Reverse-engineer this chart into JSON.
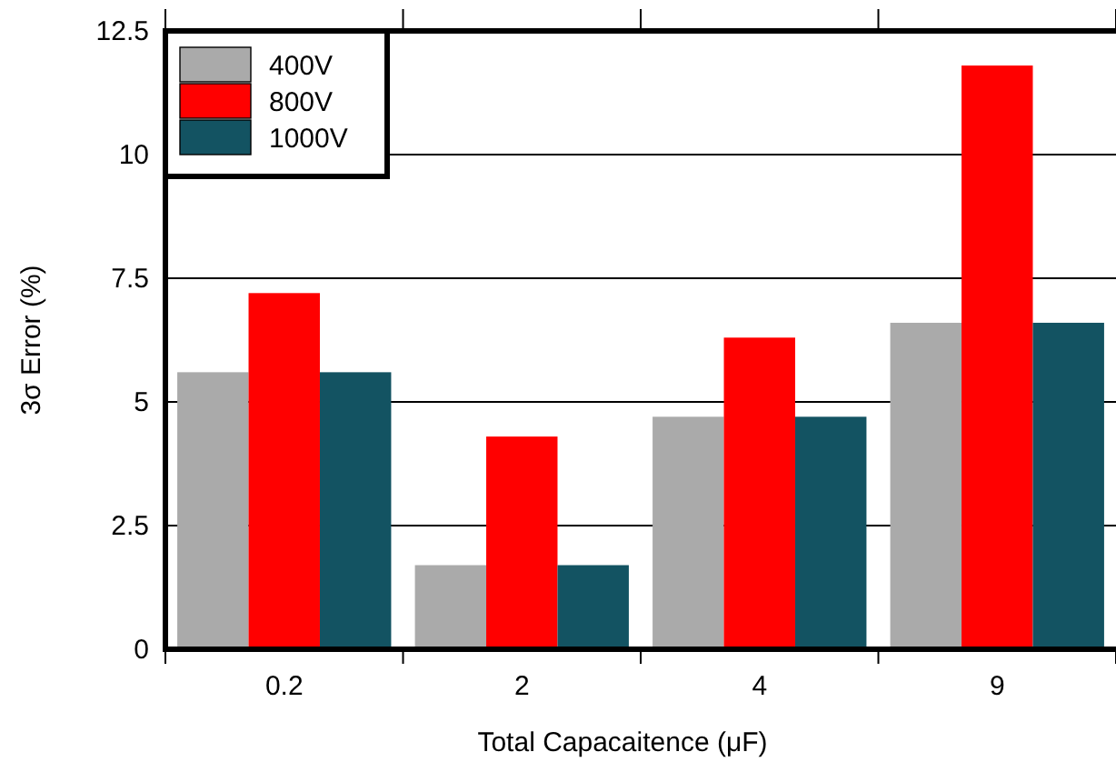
{
  "chart_data": {
    "type": "bar",
    "xlabel": "Total Capacaitence (μF)",
    "ylabel": "3σ Error (%)",
    "categories": [
      "0.2",
      "2",
      "4",
      "9"
    ],
    "series": [
      {
        "name": "400V",
        "color": "#aaaaaa",
        "values": [
          5.6,
          1.7,
          4.7,
          6.6
        ]
      },
      {
        "name": "800V",
        "color": "#ff0000",
        "values": [
          7.2,
          4.3,
          6.3,
          11.8
        ]
      },
      {
        "name": "1000V",
        "color": "#135362",
        "values": [
          5.6,
          1.7,
          4.7,
          6.6
        ]
      }
    ],
    "ylim": [
      0,
      12.5
    ],
    "yticks": [
      0,
      2.5,
      5,
      7.5,
      10,
      12.5
    ],
    "grid": "y",
    "legend": "top left"
  }
}
